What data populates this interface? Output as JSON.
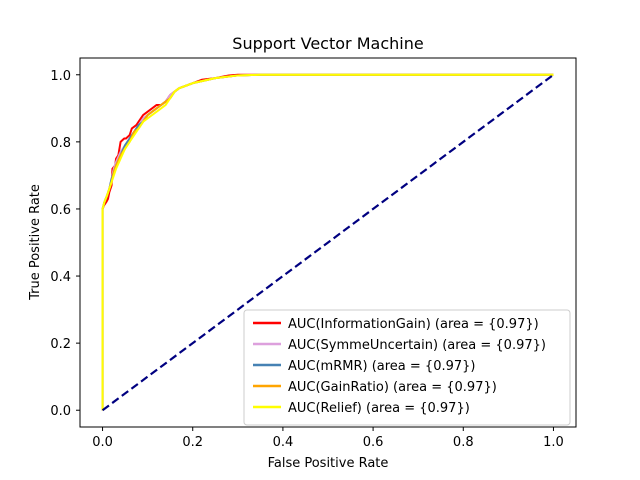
{
  "chart_data": {
    "type": "line",
    "title": "Support Vector Machine",
    "xlabel": "False Positive Rate",
    "ylabel": "True Positive Rate",
    "xlim": [
      -0.05,
      1.05
    ],
    "ylim": [
      -0.05,
      1.05
    ],
    "xticks": [
      "0.0",
      "0.2",
      "0.4",
      "0.6",
      "0.8",
      "1.0"
    ],
    "yticks": [
      "0.0",
      "0.2",
      "0.4",
      "0.6",
      "0.8",
      "1.0"
    ],
    "grid": false,
    "legend_position": "lower-right",
    "diagonal": {
      "x": [
        0,
        1
      ],
      "y": [
        0,
        1
      ],
      "color": "#000080",
      "style": "dashed"
    },
    "series": [
      {
        "name": "AUC(InformationGain) (area = {0.97})",
        "color": "#ff0000",
        "x": [
          0,
          0,
          0.003,
          0.008,
          0.012,
          0.015,
          0.02,
          0.022,
          0.028,
          0.03,
          0.035,
          0.04,
          0.048,
          0.052,
          0.06,
          0.065,
          0.075,
          0.08,
          0.09,
          0.1,
          0.11,
          0.12,
          0.13,
          0.14,
          0.15,
          0.16,
          0.17,
          0.2,
          0.22,
          0.25,
          0.28,
          0.3,
          0.35,
          0.4,
          0.5,
          0.6,
          0.7,
          0.8,
          0.9,
          1.0
        ],
        "y": [
          0,
          0.6,
          0.61,
          0.62,
          0.63,
          0.65,
          0.67,
          0.72,
          0.73,
          0.75,
          0.76,
          0.8,
          0.81,
          0.81,
          0.82,
          0.84,
          0.85,
          0.86,
          0.88,
          0.89,
          0.9,
          0.91,
          0.91,
          0.92,
          0.94,
          0.95,
          0.96,
          0.975,
          0.985,
          0.99,
          0.998,
          1.0,
          1.0,
          1.0,
          1.0,
          1.0,
          1.0,
          1.0,
          1.0,
          1.0
        ]
      },
      {
        "name": "AUC(SymmeUncertain) (area = {0.97})",
        "color": "#dda0dd",
        "x": [
          0,
          0,
          0.004,
          0.01,
          0.015,
          0.02,
          0.025,
          0.03,
          0.04,
          0.05,
          0.06,
          0.07,
          0.08,
          0.09,
          0.1,
          0.12,
          0.14,
          0.15,
          0.16,
          0.17,
          0.2,
          0.25,
          0.3,
          0.35,
          0.4,
          0.5,
          0.6,
          0.7,
          0.8,
          0.9,
          1.0
        ],
        "y": [
          0,
          0.6,
          0.62,
          0.64,
          0.66,
          0.69,
          0.72,
          0.74,
          0.77,
          0.79,
          0.81,
          0.83,
          0.85,
          0.87,
          0.88,
          0.9,
          0.92,
          0.94,
          0.95,
          0.96,
          0.975,
          0.99,
          0.998,
          1.0,
          1.0,
          1.0,
          1.0,
          1.0,
          1.0,
          1.0,
          1.0
        ]
      },
      {
        "name": "AUC(mRMR) (area = {0.97})",
        "color": "#4682b4",
        "x": [
          0,
          0,
          0.004,
          0.01,
          0.015,
          0.02,
          0.025,
          0.03,
          0.04,
          0.05,
          0.06,
          0.07,
          0.08,
          0.09,
          0.1,
          0.12,
          0.14,
          0.15,
          0.16,
          0.17,
          0.2,
          0.25,
          0.3,
          0.35,
          0.4,
          0.5,
          0.6,
          0.7,
          0.8,
          0.9,
          1.0
        ],
        "y": [
          0,
          0.6,
          0.62,
          0.64,
          0.66,
          0.69,
          0.71,
          0.73,
          0.76,
          0.79,
          0.81,
          0.83,
          0.85,
          0.86,
          0.88,
          0.9,
          0.92,
          0.93,
          0.95,
          0.96,
          0.975,
          0.99,
          0.998,
          1.0,
          1.0,
          1.0,
          1.0,
          1.0,
          1.0,
          1.0,
          1.0
        ]
      },
      {
        "name": "AUC(GainRatio) (area = {0.97})",
        "color": "#ffa500",
        "x": [
          0,
          0,
          0.004,
          0.01,
          0.015,
          0.02,
          0.025,
          0.03,
          0.04,
          0.05,
          0.06,
          0.07,
          0.08,
          0.09,
          0.1,
          0.12,
          0.14,
          0.15,
          0.16,
          0.17,
          0.2,
          0.25,
          0.3,
          0.35,
          0.4,
          0.5,
          0.6,
          0.7,
          0.8,
          0.9,
          1.0
        ],
        "y": [
          0,
          0.6,
          0.62,
          0.64,
          0.66,
          0.68,
          0.71,
          0.73,
          0.76,
          0.78,
          0.8,
          0.83,
          0.84,
          0.86,
          0.88,
          0.9,
          0.92,
          0.93,
          0.95,
          0.96,
          0.975,
          0.99,
          0.998,
          1.0,
          1.0,
          1.0,
          1.0,
          1.0,
          1.0,
          1.0,
          1.0
        ]
      },
      {
        "name": "AUC(Relief) (area = {0.97})",
        "color": "#ffff00",
        "x": [
          0,
          0,
          0.004,
          0.01,
          0.015,
          0.02,
          0.025,
          0.03,
          0.04,
          0.05,
          0.06,
          0.07,
          0.08,
          0.09,
          0.1,
          0.12,
          0.14,
          0.15,
          0.16,
          0.17,
          0.2,
          0.25,
          0.3,
          0.35,
          0.4,
          0.5,
          0.6,
          0.7,
          0.8,
          0.9,
          1.0
        ],
        "y": [
          0,
          0.6,
          0.62,
          0.64,
          0.66,
          0.68,
          0.7,
          0.72,
          0.75,
          0.78,
          0.8,
          0.82,
          0.84,
          0.86,
          0.87,
          0.89,
          0.91,
          0.93,
          0.95,
          0.96,
          0.975,
          0.99,
          0.998,
          1.0,
          1.0,
          1.0,
          1.0,
          1.0,
          1.0,
          1.0,
          1.0
        ]
      }
    ]
  }
}
